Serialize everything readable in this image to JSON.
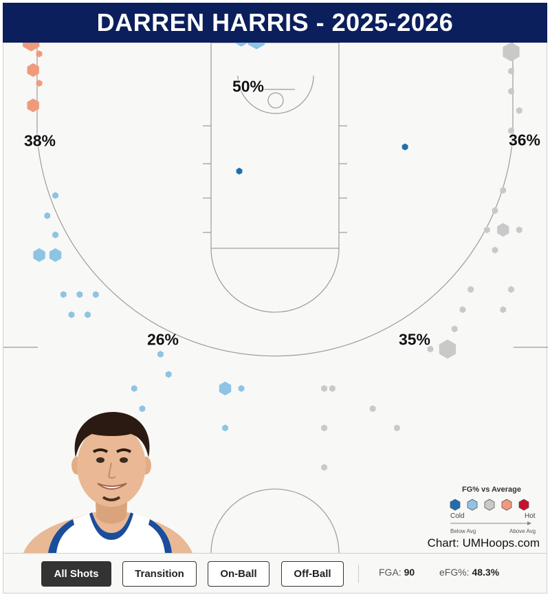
{
  "title": "DARREN HARRIS - 2025-2026",
  "chart_data": {
    "type": "hexbin-shot-chart",
    "color_scale": {
      "cold": "#1f6fb0",
      "below": "#8ec3e4",
      "average": "#c9c9c9",
      "above": "#f19a7b",
      "hot": "#c8102e"
    },
    "zones": [
      {
        "zone": "left-corner-three",
        "fg_pct": "38%"
      },
      {
        "zone": "paint",
        "fg_pct": "50%"
      },
      {
        "zone": "right-corner-three",
        "fg_pct": "36%"
      },
      {
        "zone": "left-wing-three",
        "fg_pct": "26%"
      },
      {
        "zone": "right-wing-three",
        "fg_pct": "35%"
      }
    ],
    "shots": [
      {
        "x": -23.5,
        "y": 7.7,
        "volume": 3,
        "level": "above"
      },
      {
        "x": -24.2,
        "y": 5.8,
        "volume": 3,
        "level": "above"
      },
      {
        "x": -23.4,
        "y": 4.6,
        "volume": 1,
        "level": "above"
      },
      {
        "x": -24.0,
        "y": 3.0,
        "volume": 2,
        "level": "above"
      },
      {
        "x": -23.4,
        "y": 1.7,
        "volume": 1,
        "level": "above"
      },
      {
        "x": -24.0,
        "y": -0.5,
        "volume": 2,
        "level": "above"
      },
      {
        "x": -19.8,
        "y": 6.1,
        "volume": 1,
        "level": "cold"
      },
      {
        "x": -2.6,
        "y": 7.5,
        "volume": 3,
        "level": "below"
      },
      {
        "x": -0.8,
        "y": 7.5,
        "volume": 1,
        "level": "below"
      },
      {
        "x": 0.6,
        "y": 7.5,
        "volume": 1,
        "level": "below"
      },
      {
        "x": 2.5,
        "y": 7.5,
        "volume": 3,
        "level": "below"
      },
      {
        "x": -3.4,
        "y": 6.0,
        "volume": 2,
        "level": "below"
      },
      {
        "x": -1.9,
        "y": 6.0,
        "volume": 3,
        "level": "below"
      },
      {
        "x": 1.6,
        "y": 6.0,
        "volume": 1,
        "level": "below"
      },
      {
        "x": 3.4,
        "y": 6.0,
        "volume": 1,
        "level": "below"
      },
      {
        "x": -3.6,
        "y": -7.0,
        "volume": 1,
        "level": "cold"
      },
      {
        "x": 12.8,
        "y": -4.6,
        "volume": 1,
        "level": "cold"
      },
      {
        "x": -21.8,
        "y": -9.4,
        "volume": 1,
        "level": "below"
      },
      {
        "x": -22.6,
        "y": -11.4,
        "volume": 1,
        "level": "below"
      },
      {
        "x": -21.8,
        "y": -13.3,
        "volume": 1,
        "level": "below"
      },
      {
        "x": -23.4,
        "y": -15.3,
        "volume": 2,
        "level": "below"
      },
      {
        "x": -21.8,
        "y": -15.3,
        "volume": 2,
        "level": "below"
      },
      {
        "x": -21.0,
        "y": -19.2,
        "volume": 1,
        "level": "below"
      },
      {
        "x": -19.4,
        "y": -19.2,
        "volume": 1,
        "level": "below"
      },
      {
        "x": -17.8,
        "y": -19.2,
        "volume": 1,
        "level": "below"
      },
      {
        "x": -20.2,
        "y": -21.2,
        "volume": 1,
        "level": "below"
      },
      {
        "x": -18.6,
        "y": -21.2,
        "volume": 1,
        "level": "below"
      },
      {
        "x": -11.4,
        "y": -25.1,
        "volume": 1,
        "level": "below"
      },
      {
        "x": -10.6,
        "y": -27.1,
        "volume": 1,
        "level": "below"
      },
      {
        "x": -14.0,
        "y": -28.5,
        "volume": 1,
        "level": "below"
      },
      {
        "x": -13.2,
        "y": -30.5,
        "volume": 1,
        "level": "below"
      },
      {
        "x": -5.0,
        "y": -28.5,
        "volume": 2,
        "level": "below"
      },
      {
        "x": -3.4,
        "y": -28.5,
        "volume": 1,
        "level": "below"
      },
      {
        "x": -5.0,
        "y": -32.4,
        "volume": 1,
        "level": "below"
      },
      {
        "x": 23.3,
        "y": 8.7,
        "volume": 2,
        "level": "average"
      },
      {
        "x": 24.1,
        "y": 6.8,
        "volume": 3,
        "level": "average"
      },
      {
        "x": 23.3,
        "y": 4.8,
        "volume": 3,
        "level": "average"
      },
      {
        "x": 23.3,
        "y": 2.9,
        "volume": 1,
        "level": "average"
      },
      {
        "x": 23.3,
        "y": 0.9,
        "volume": 1,
        "level": "average"
      },
      {
        "x": 24.1,
        "y": -1.0,
        "volume": 1,
        "level": "average"
      },
      {
        "x": 23.3,
        "y": -3.0,
        "volume": 1,
        "level": "average"
      },
      {
        "x": 22.5,
        "y": -8.9,
        "volume": 1,
        "level": "average"
      },
      {
        "x": 21.7,
        "y": -10.9,
        "volume": 1,
        "level": "average"
      },
      {
        "x": 20.9,
        "y": -12.8,
        "volume": 1,
        "level": "average"
      },
      {
        "x": 22.5,
        "y": -12.8,
        "volume": 2,
        "level": "average"
      },
      {
        "x": 24.1,
        "y": -12.8,
        "volume": 1,
        "level": "average"
      },
      {
        "x": 21.7,
        "y": -14.8,
        "volume": 1,
        "level": "average"
      },
      {
        "x": 19.3,
        "y": -18.7,
        "volume": 1,
        "level": "average"
      },
      {
        "x": 18.5,
        "y": -20.7,
        "volume": 1,
        "level": "average"
      },
      {
        "x": 23.3,
        "y": -18.7,
        "volume": 1,
        "level": "average"
      },
      {
        "x": 22.5,
        "y": -20.7,
        "volume": 1,
        "level": "average"
      },
      {
        "x": 17.7,
        "y": -22.6,
        "volume": 1,
        "level": "average"
      },
      {
        "x": 15.3,
        "y": -24.6,
        "volume": 1,
        "level": "average"
      },
      {
        "x": 17.0,
        "y": -24.6,
        "volume": 3,
        "level": "average"
      },
      {
        "x": 5.6,
        "y": -28.5,
        "volume": 1,
        "level": "average"
      },
      {
        "x": 9.6,
        "y": -30.5,
        "volume": 1,
        "level": "average"
      },
      {
        "x": 4.8,
        "y": -32.4,
        "volume": 1,
        "level": "average"
      },
      {
        "x": 12.0,
        "y": -32.4,
        "volume": 1,
        "level": "average"
      },
      {
        "x": 4.8,
        "y": -36.3,
        "volume": 1,
        "level": "average"
      },
      {
        "x": 4.8,
        "y": -28.5,
        "volume": 1,
        "level": "average"
      }
    ]
  },
  "legend": {
    "title": "FG% vs Average",
    "cold_label": "Cold",
    "hot_label": "Hot",
    "below_label": "Below Avg",
    "above_label": "Above Avg"
  },
  "credit": "Chart: UMHoops.com",
  "filters": {
    "all": "All Shots",
    "transition": "Transition",
    "on_ball": "On-Ball",
    "off_ball": "Off-Ball"
  },
  "stats": {
    "fga_label": "FGA:",
    "fga_value": "90",
    "efg_label": "eFG%:",
    "efg_value": "48.3%"
  }
}
